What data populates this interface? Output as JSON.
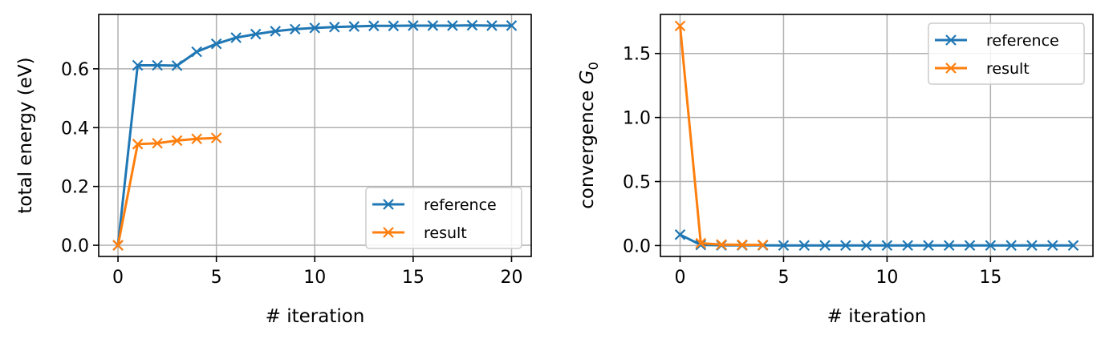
{
  "chart_data": [
    {
      "type": "line",
      "xlabel": "# iteration",
      "ylabel": "total energy (eV)",
      "xlim": [
        -0.98,
        21.0
      ],
      "ylim": [
        -0.038,
        0.785
      ],
      "xticks": [
        0,
        5,
        10,
        15,
        20
      ],
      "yticks": [
        0.0,
        0.2,
        0.4,
        0.6
      ],
      "xtick_labels": [
        "0",
        "5",
        "10",
        "15",
        "20"
      ],
      "ytick_labels": [
        "0.0",
        "0.2",
        "0.4",
        "0.6"
      ],
      "grid": true,
      "legend": "lower-right",
      "series": [
        {
          "name": "reference",
          "color": "#1f77b4",
          "marker": "x",
          "x": [
            0,
            1,
            2,
            3,
            4,
            5,
            6,
            7,
            8,
            9,
            10,
            11,
            12,
            13,
            14,
            15,
            16,
            17,
            18,
            19,
            20
          ],
          "values": [
            0.0,
            0.612,
            0.612,
            0.611,
            0.658,
            0.685,
            0.706,
            0.718,
            0.728,
            0.735,
            0.739,
            0.742,
            0.744,
            0.746,
            0.746,
            0.747,
            0.747,
            0.747,
            0.748,
            0.747,
            0.747
          ]
        },
        {
          "name": "result",
          "color": "#ff7f0e",
          "marker": "x",
          "x": [
            0,
            1,
            2,
            3,
            4,
            5
          ],
          "values": [
            0.0,
            0.344,
            0.347,
            0.356,
            0.362,
            0.365
          ]
        }
      ]
    },
    {
      "type": "line",
      "xlabel": "# iteration",
      "ylabel_main": "convergence ",
      "ylabel_math": "G",
      "ylabel_sub": "0",
      "xlim": [
        -0.95,
        19.95
      ],
      "ylim": [
        -0.085,
        1.805
      ],
      "xticks": [
        0,
        5,
        10,
        15
      ],
      "yticks": [
        0.0,
        0.5,
        1.0,
        1.5
      ],
      "xtick_labels": [
        "0",
        "5",
        "10",
        "15"
      ],
      "ytick_labels": [
        "0.0",
        "0.5",
        "1.0",
        "1.5"
      ],
      "grid": true,
      "legend": "upper-right",
      "series": [
        {
          "name": "reference",
          "color": "#1f77b4",
          "marker": "x",
          "x": [
            0,
            1,
            2,
            3,
            4,
            5,
            6,
            7,
            8,
            9,
            10,
            11,
            12,
            13,
            14,
            15,
            16,
            17,
            18,
            19
          ],
          "values": [
            0.085,
            0.005,
            0.002,
            0.002,
            0.002,
            0.001,
            0.001,
            0.001,
            0.001,
            0.001,
            0.001,
            0.001,
            0.001,
            0.001,
            0.001,
            0.001,
            0.001,
            0.001,
            0.001,
            0.001
          ]
        },
        {
          "name": "result",
          "color": "#ff7f0e",
          "marker": "x",
          "x": [
            0,
            1,
            2,
            3,
            4
          ],
          "values": [
            1.715,
            0.018,
            0.008,
            0.006,
            0.005
          ]
        }
      ]
    }
  ]
}
